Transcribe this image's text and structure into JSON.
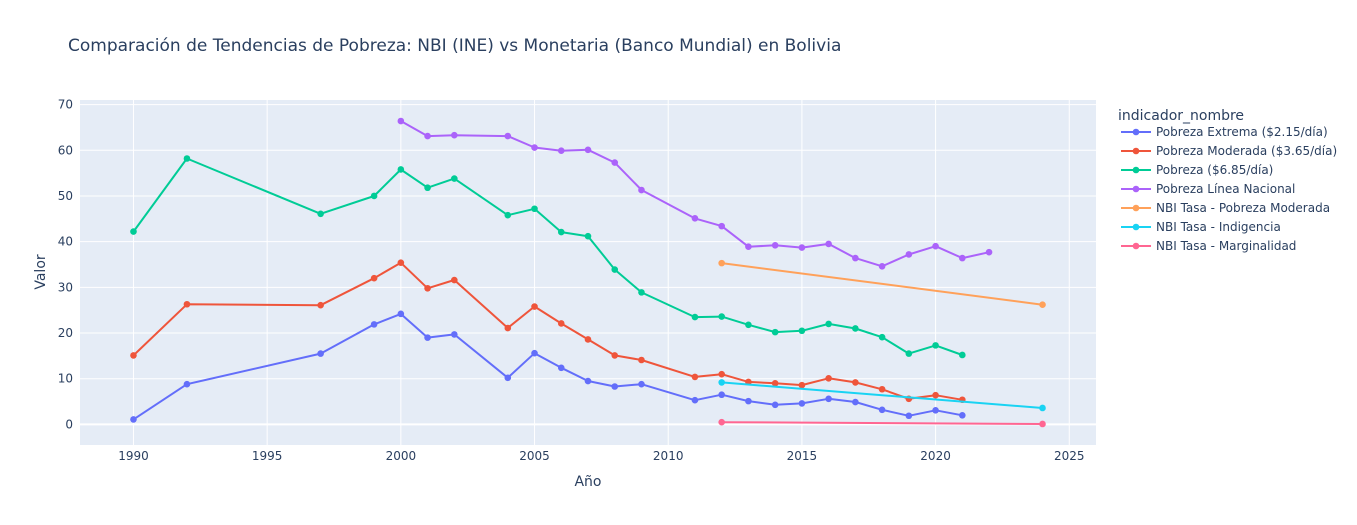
{
  "chart_data": {
    "type": "line",
    "title": "Comparación de Tendencias de Pobreza: NBI (INE) vs Monetaria (Banco Mundial) en Bolivia",
    "xlabel": "Año",
    "ylabel": "Valor",
    "xlim": [
      1988,
      2026
    ],
    "ylim": [
      -4.5,
      71
    ],
    "x_ticks": [
      1990,
      1995,
      2000,
      2005,
      2010,
      2015,
      2020,
      2025
    ],
    "y_ticks": [
      0,
      10,
      20,
      30,
      40,
      50,
      60,
      70
    ],
    "grid": true,
    "legend_title": "indicador_nombre",
    "legend_position": "right",
    "series": [
      {
        "name": "Pobreza Extrema ($2.15/día)",
        "color": "#636efa",
        "points": [
          [
            1990,
            1.1
          ],
          [
            1992,
            8.8
          ],
          [
            1997,
            15.5
          ],
          [
            1999,
            21.9
          ],
          [
            2000,
            24.2
          ],
          [
            2001,
            19.0
          ],
          [
            2002,
            19.7
          ],
          [
            2004,
            10.2
          ],
          [
            2005,
            15.6
          ],
          [
            2006,
            12.4
          ],
          [
            2007,
            9.5
          ],
          [
            2008,
            8.3
          ],
          [
            2009,
            8.8
          ],
          [
            2011,
            5.3
          ],
          [
            2012,
            6.5
          ],
          [
            2013,
            5.1
          ],
          [
            2014,
            4.3
          ],
          [
            2015,
            4.6
          ],
          [
            2016,
            5.6
          ],
          [
            2017,
            4.9
          ],
          [
            2018,
            3.2
          ],
          [
            2019,
            1.9
          ],
          [
            2020,
            3.1
          ],
          [
            2021,
            2.0
          ]
        ]
      },
      {
        "name": "Pobreza Moderada ($3.65/día)",
        "color": "#ef553b",
        "points": [
          [
            1990,
            15.1
          ],
          [
            1992,
            26.3
          ],
          [
            1997,
            26.1
          ],
          [
            1999,
            32.0
          ],
          [
            2000,
            35.4
          ],
          [
            2001,
            29.8
          ],
          [
            2002,
            31.6
          ],
          [
            2004,
            21.1
          ],
          [
            2005,
            25.8
          ],
          [
            2006,
            22.1
          ],
          [
            2007,
            18.6
          ],
          [
            2008,
            15.1
          ],
          [
            2009,
            14.1
          ],
          [
            2011,
            10.4
          ],
          [
            2012,
            11.0
          ],
          [
            2013,
            9.3
          ],
          [
            2014,
            9.0
          ],
          [
            2015,
            8.6
          ],
          [
            2016,
            10.1
          ],
          [
            2017,
            9.2
          ],
          [
            2018,
            7.7
          ],
          [
            2019,
            5.6
          ],
          [
            2020,
            6.4
          ],
          [
            2021,
            5.4
          ]
        ]
      },
      {
        "name": "Pobreza ($6.85/día)",
        "color": "#00cc96",
        "points": [
          [
            1990,
            42.2
          ],
          [
            1992,
            58.2
          ],
          [
            1997,
            46.1
          ],
          [
            1999,
            50.0
          ],
          [
            2000,
            55.8
          ],
          [
            2001,
            51.8
          ],
          [
            2002,
            53.8
          ],
          [
            2004,
            45.8
          ],
          [
            2005,
            47.2
          ],
          [
            2006,
            42.1
          ],
          [
            2007,
            41.2
          ],
          [
            2008,
            33.9
          ],
          [
            2009,
            28.9
          ],
          [
            2011,
            23.5
          ],
          [
            2012,
            23.6
          ],
          [
            2013,
            21.8
          ],
          [
            2014,
            20.2
          ],
          [
            2015,
            20.5
          ],
          [
            2016,
            22.0
          ],
          [
            2017,
            21.0
          ],
          [
            2018,
            19.1
          ],
          [
            2019,
            15.5
          ],
          [
            2020,
            17.3
          ],
          [
            2021,
            15.2
          ]
        ]
      },
      {
        "name": "Pobreza Línea Nacional",
        "color": "#ab63fa",
        "points": [
          [
            2000,
            66.4
          ],
          [
            2001,
            63.1
          ],
          [
            2002,
            63.3
          ],
          [
            2004,
            63.1
          ],
          [
            2005,
            60.6
          ],
          [
            2006,
            59.9
          ],
          [
            2007,
            60.1
          ],
          [
            2008,
            57.3
          ],
          [
            2009,
            51.3
          ],
          [
            2011,
            45.1
          ],
          [
            2012,
            43.4
          ],
          [
            2013,
            38.9
          ],
          [
            2014,
            39.2
          ],
          [
            2015,
            38.7
          ],
          [
            2016,
            39.5
          ],
          [
            2017,
            36.4
          ],
          [
            2018,
            34.6
          ],
          [
            2019,
            37.2
          ],
          [
            2020,
            39.0
          ],
          [
            2021,
            36.4
          ],
          [
            2022,
            37.7
          ]
        ]
      },
      {
        "name": "NBI Tasa - Pobreza Moderada",
        "color": "#ffa15a",
        "points": [
          [
            2012,
            35.3
          ],
          [
            2024,
            26.2
          ]
        ]
      },
      {
        "name": "NBI Tasa - Indigencia",
        "color": "#19d3f3",
        "points": [
          [
            2012,
            9.2
          ],
          [
            2024,
            3.6
          ]
        ]
      },
      {
        "name": "NBI Tasa - Marginalidad",
        "color": "#ff6692",
        "points": [
          [
            2012,
            0.5
          ],
          [
            2024,
            0.1
          ]
        ]
      }
    ]
  }
}
